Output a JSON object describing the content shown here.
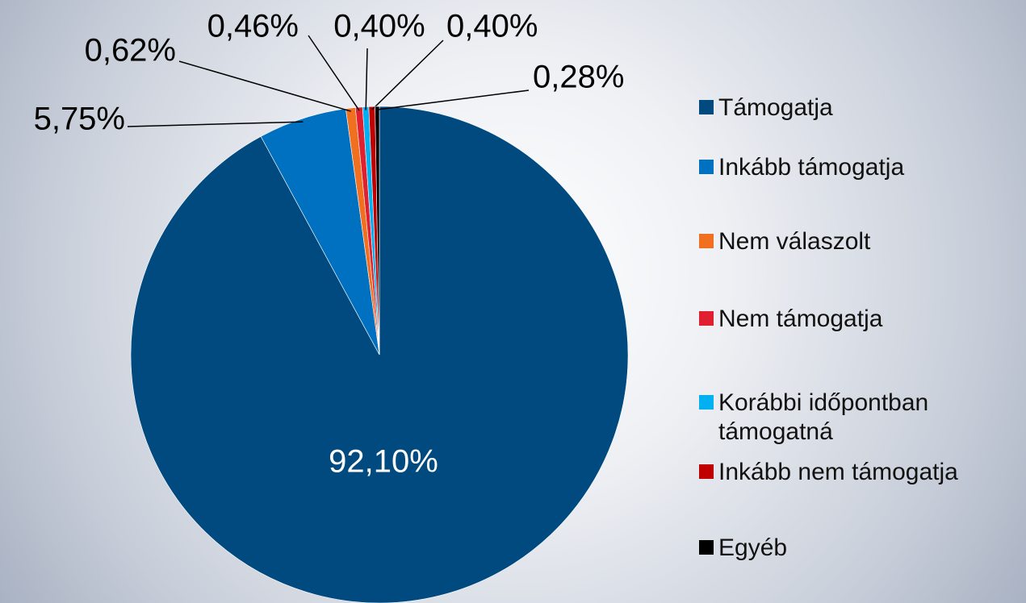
{
  "chart_data": {
    "type": "pie",
    "categories": [
      "Támogatja",
      "Inkább támogatja",
      "Nem válaszolt",
      "Nem támogatja",
      "Korábbi időpontban támogatná",
      "Inkább nem támogatja",
      "Egyéb"
    ],
    "values": [
      92.1,
      5.75,
      0.62,
      0.46,
      0.4,
      0.4,
      0.28
    ],
    "value_labels": [
      "92,10%",
      "5,75%",
      "0,62%",
      "0,46%",
      "0,40%",
      "0,40%",
      "0,28%"
    ],
    "colors": [
      "#004a80",
      "#0070c0",
      "#f07020",
      "#e02030",
      "#00b0f0",
      "#c00000",
      "#000000"
    ],
    "legend": "right"
  }
}
